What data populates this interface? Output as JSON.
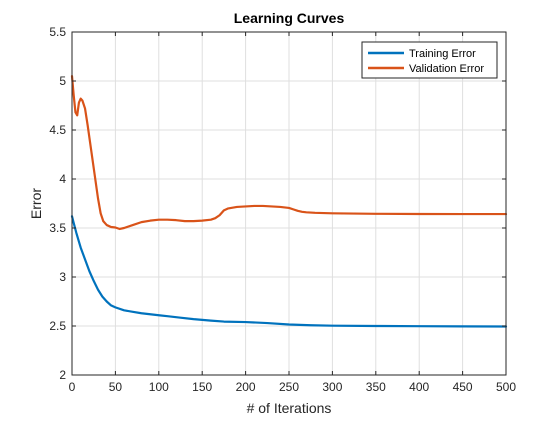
{
  "chart_data": {
    "type": "line",
    "title": "Learning Curves",
    "xlabel": "# of Iterations",
    "ylabel": "Error",
    "xlim": [
      0,
      500
    ],
    "ylim": [
      2,
      5.5
    ],
    "xticks": [
      0,
      50,
      100,
      150,
      200,
      250,
      300,
      350,
      400,
      450,
      500
    ],
    "xtick_labels": [
      "0",
      "50",
      "100",
      "150",
      "200",
      "250",
      "300",
      "350",
      "400",
      "450",
      "500"
    ],
    "yticks": [
      2,
      2.5,
      3,
      3.5,
      4,
      4.5,
      5,
      5.5
    ],
    "ytick_labels": [
      "2",
      "2.5",
      "3",
      "3.5",
      "4",
      "4.5",
      "5",
      "5.5"
    ],
    "grid": true,
    "legend_placement": "top-right",
    "series": [
      {
        "name": "Training Error",
        "color": "#0072BD",
        "points": [
          [
            0,
            3.62
          ],
          [
            2,
            3.55
          ],
          [
            5,
            3.45
          ],
          [
            10,
            3.3
          ],
          [
            15,
            3.18
          ],
          [
            20,
            3.06
          ],
          [
            25,
            2.96
          ],
          [
            30,
            2.87
          ],
          [
            35,
            2.8
          ],
          [
            40,
            2.75
          ],
          [
            45,
            2.71
          ],
          [
            50,
            2.69
          ],
          [
            60,
            2.66
          ],
          [
            70,
            2.645
          ],
          [
            80,
            2.63
          ],
          [
            90,
            2.62
          ],
          [
            100,
            2.61
          ],
          [
            110,
            2.6
          ],
          [
            125,
            2.585
          ],
          [
            140,
            2.57
          ],
          [
            160,
            2.555
          ],
          [
            175,
            2.545
          ],
          [
            200,
            2.54
          ],
          [
            225,
            2.53
          ],
          [
            250,
            2.515
          ],
          [
            275,
            2.508
          ],
          [
            300,
            2.503
          ],
          [
            350,
            2.5
          ],
          [
            400,
            2.498
          ],
          [
            450,
            2.496
          ],
          [
            500,
            2.495
          ]
        ]
      },
      {
        "name": "Validation Error",
        "color": "#D95319",
        "points": [
          [
            0,
            5.05
          ],
          [
            2,
            4.85
          ],
          [
            4,
            4.68
          ],
          [
            6,
            4.65
          ],
          [
            8,
            4.78
          ],
          [
            10,
            4.82
          ],
          [
            12,
            4.8
          ],
          [
            15,
            4.72
          ],
          [
            18,
            4.55
          ],
          [
            22,
            4.3
          ],
          [
            26,
            4.05
          ],
          [
            30,
            3.8
          ],
          [
            33,
            3.65
          ],
          [
            36,
            3.57
          ],
          [
            40,
            3.53
          ],
          [
            45,
            3.51
          ],
          [
            50,
            3.505
          ],
          [
            55,
            3.49
          ],
          [
            60,
            3.5
          ],
          [
            70,
            3.53
          ],
          [
            80,
            3.56
          ],
          [
            90,
            3.575
          ],
          [
            100,
            3.585
          ],
          [
            110,
            3.585
          ],
          [
            120,
            3.58
          ],
          [
            130,
            3.57
          ],
          [
            140,
            3.57
          ],
          [
            150,
            3.575
          ],
          [
            160,
            3.585
          ],
          [
            165,
            3.6
          ],
          [
            170,
            3.63
          ],
          [
            175,
            3.68
          ],
          [
            180,
            3.7
          ],
          [
            190,
            3.715
          ],
          [
            200,
            3.72
          ],
          [
            210,
            3.725
          ],
          [
            220,
            3.725
          ],
          [
            230,
            3.72
          ],
          [
            240,
            3.715
          ],
          [
            250,
            3.705
          ],
          [
            255,
            3.69
          ],
          [
            260,
            3.675
          ],
          [
            265,
            3.665
          ],
          [
            270,
            3.66
          ],
          [
            280,
            3.655
          ],
          [
            300,
            3.65
          ],
          [
            350,
            3.645
          ],
          [
            400,
            3.643
          ],
          [
            450,
            3.642
          ],
          [
            500,
            3.642
          ]
        ]
      }
    ]
  }
}
